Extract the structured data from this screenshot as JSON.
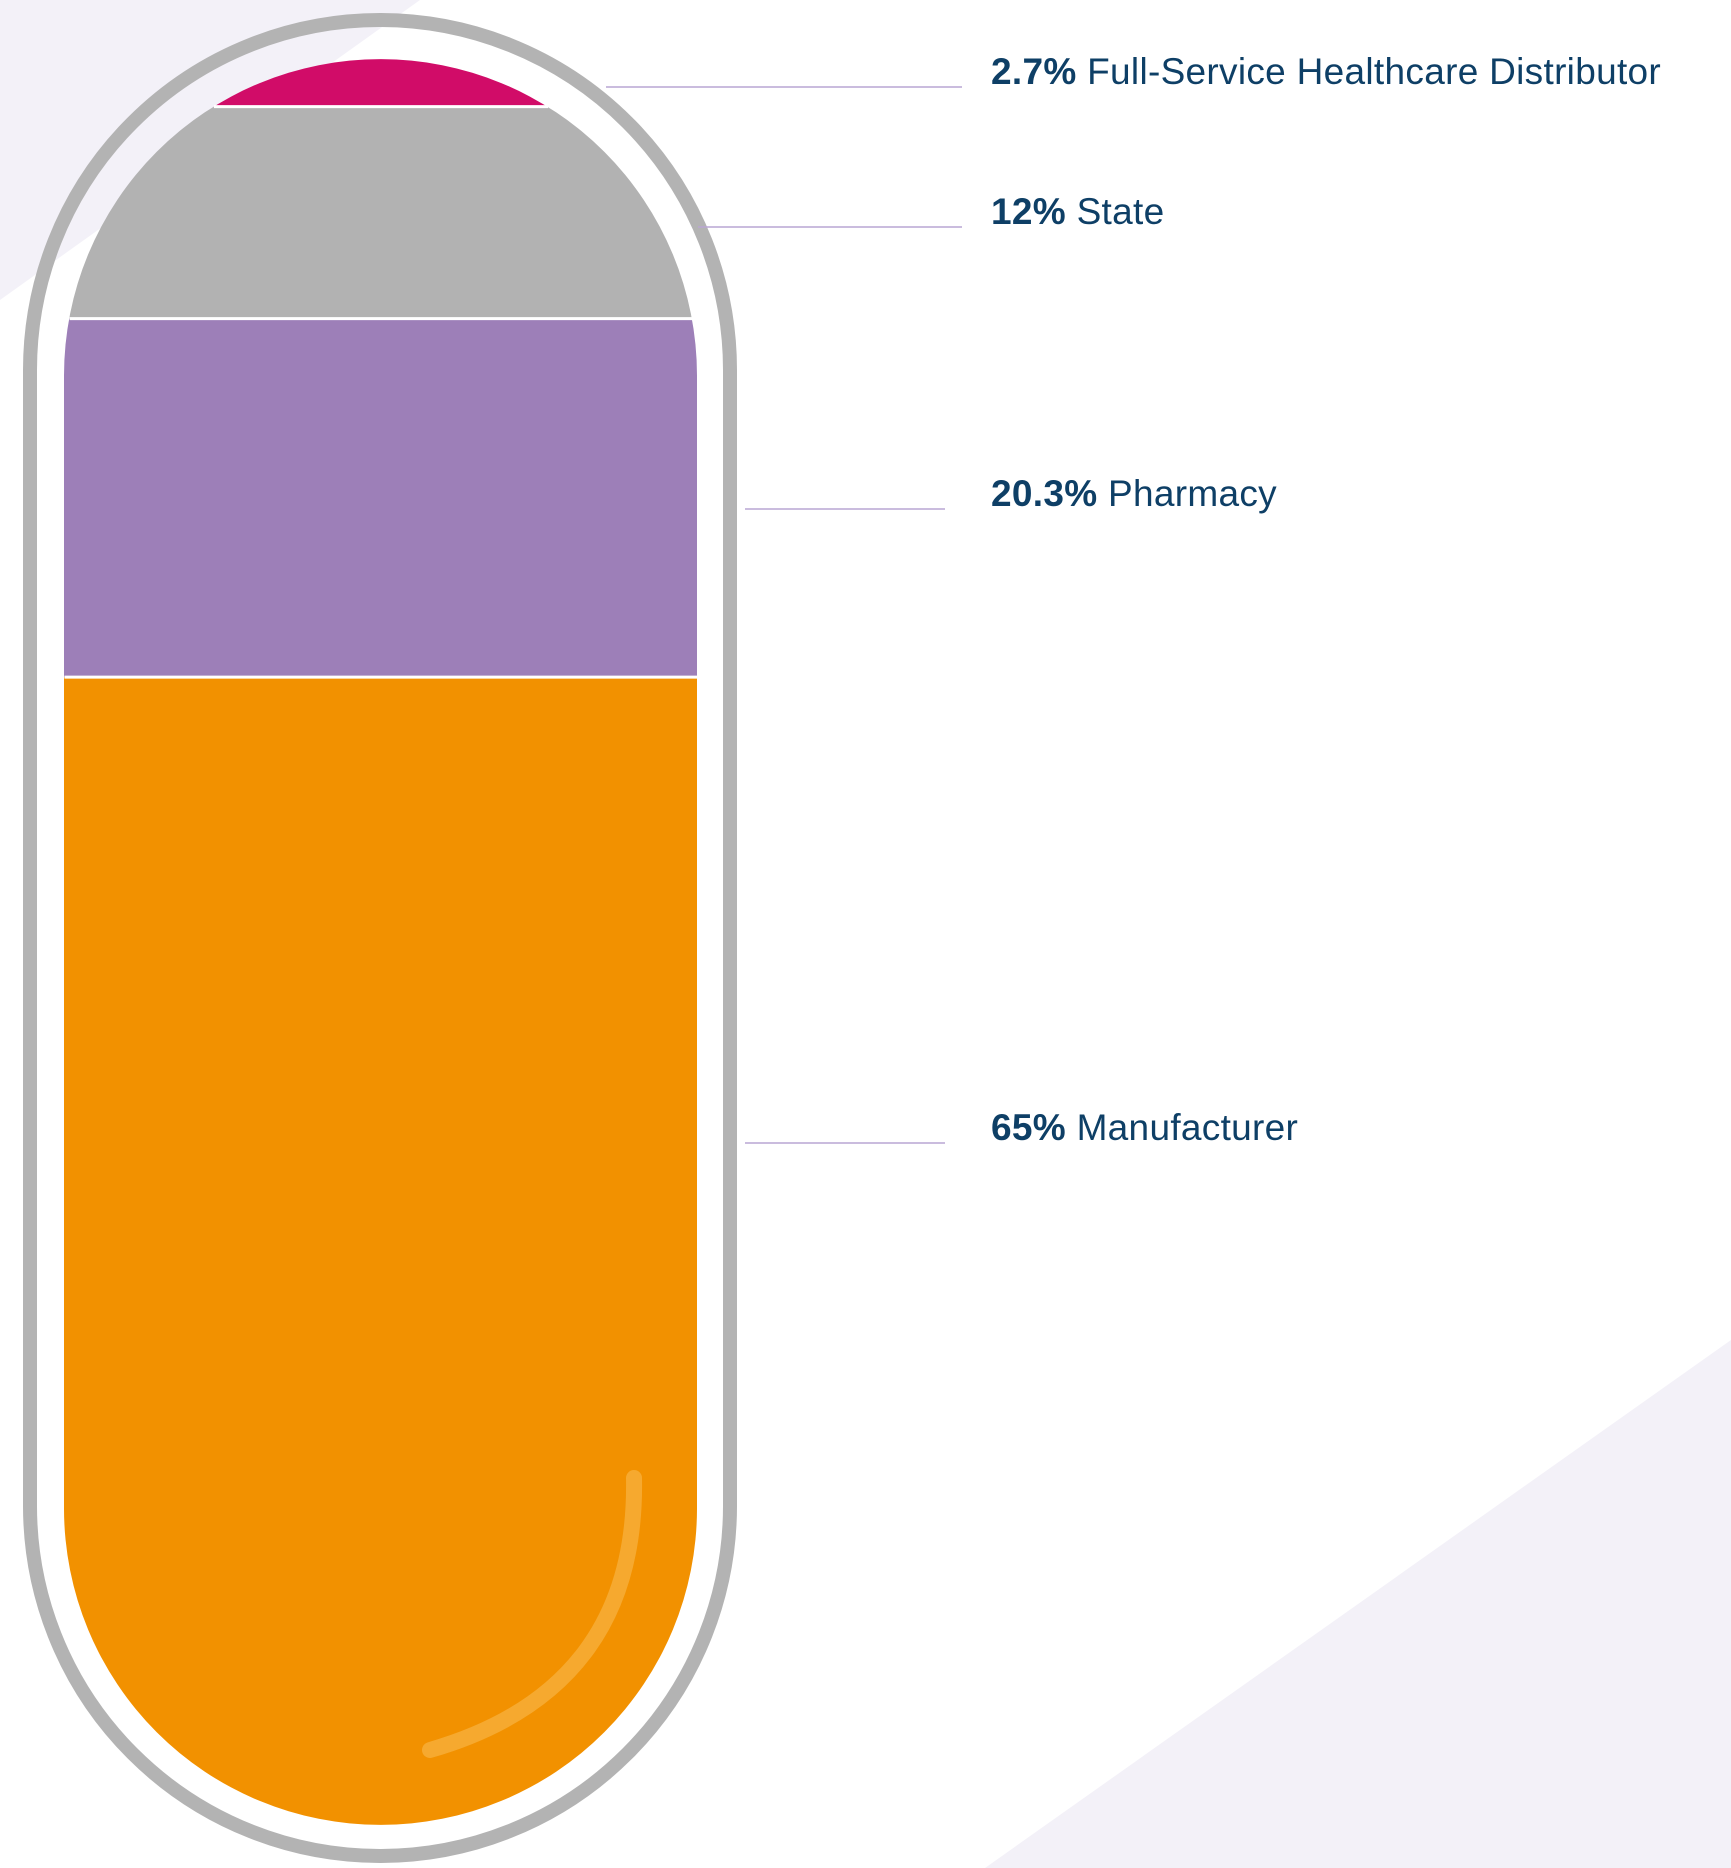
{
  "chart_data": {
    "type": "bar",
    "stacked": true,
    "shape": "capsule",
    "unit": "%",
    "categories": [
      "Manufacturer",
      "Pharmacy",
      "State",
      "Full-Service Healthcare Distributor"
    ],
    "values": [
      65,
      20.3,
      12,
      2.7
    ],
    "labels": [
      "65%",
      "20.3%",
      "12%",
      "2.7%"
    ],
    "colors": [
      "#F29100",
      "#9D7FB8",
      "#B2B2B2",
      "#D10C68"
    ],
    "legend_placement": "right",
    "grid": false
  },
  "colors": {
    "capsule_outline": "#B3B3B3",
    "text": "#0E3F66",
    "leader_line": "#B9A6D3",
    "background_shape": "#F3F1F8",
    "highlight": "#F7B13F"
  }
}
